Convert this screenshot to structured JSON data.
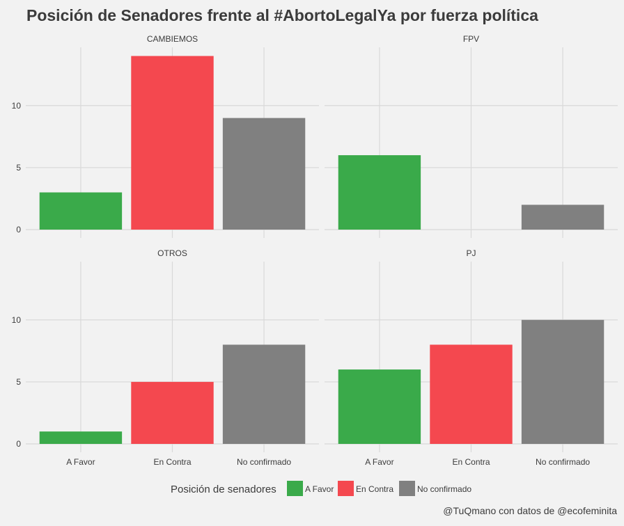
{
  "chart_data": {
    "type": "bar",
    "title": "Posición de Senadores frente al #AbortoLegalYa por fuerza política",
    "caption": "@TuQmano con datos de @ecofeminita",
    "categories": [
      "A Favor",
      "En Contra",
      "No confirmado"
    ],
    "yticks": [
      0,
      5,
      10
    ],
    "ylim": [
      0,
      14.7
    ],
    "grid": true,
    "legend": {
      "title": "Posición de senadores",
      "placement": "bottom",
      "entries": [
        "A Favor",
        "En Contra",
        "No confirmado"
      ]
    },
    "colors": {
      "A Favor": "#3aaa4a",
      "En Contra": "#f4484f",
      "No confirmado": "#808080"
    },
    "panels": [
      {
        "name": "CAMBIEMOS",
        "values": [
          3,
          14,
          9
        ]
      },
      {
        "name": "FPV",
        "values": [
          6,
          0,
          2
        ]
      },
      {
        "name": "OTROS",
        "values": [
          1,
          5,
          8
        ]
      },
      {
        "name": "PJ",
        "values": [
          6,
          8,
          10
        ]
      }
    ]
  }
}
